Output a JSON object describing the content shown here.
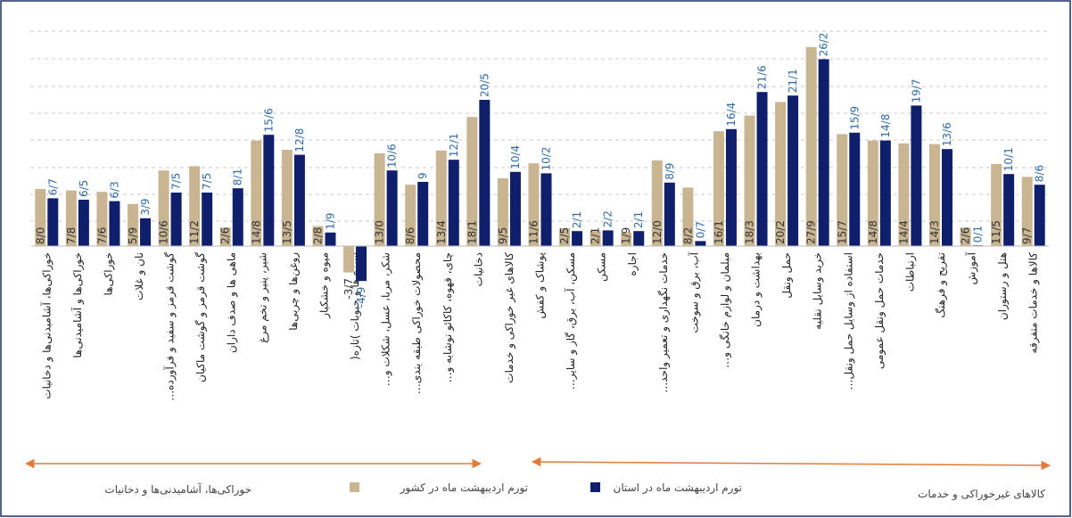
{
  "chart_data": {
    "type": "bar",
    "categories": [
      "خوراکی‌ها، آشامیدنی‌ها و دخانیات",
      "خوراکی‌ها و آشامیدنی‌ها",
      "خوراکی‌ها",
      "نان و غلات",
      "گوشت قرمز و سفید و فرآورده…",
      "گوشت قرمز و گوشت ماکیان",
      "ماهی ها و صدف داران",
      "شیر، پنیر و تخم مرغ",
      "روغن‌ها و چربی‌ها",
      "میوه و خشکبار",
      "سبزی‌ها و حبوبات )تازه(",
      "شکر، مربا، عسل، شکلات و…",
      "محصولات خوراکی طبقه بندی…",
      "چای، قهوه، کاکائو نوشابه و…",
      "دخانیات",
      "کالاهای غیر خوراکی و خدمات",
      "پوشاک و کفش",
      "مسکن، آب، برق، گاز و سایر…",
      "مسکن",
      "اجاره",
      "خدمات نگهداری و تعمیر واحد…",
      "آب، برق و سوخت",
      "مبلمان و لوازم خانگی و…",
      "بهداشت و درمان",
      "حمل ونقل",
      "خرید وسایل نقلیه",
      "استفاده از وسایل حمل ونقل…",
      "خدمات حمل ونقل عمومی",
      "ارتباطات",
      "تفریح و فرهنگ",
      "آموزش",
      "هتل و رستوران",
      "کالاها و خدمات متفرقه"
    ],
    "series": [
      {
        "name": "تورم اردیبهشت ماه در کشور",
        "color": "#c9b591",
        "values": [
          8.0,
          7.8,
          7.6,
          5.9,
          10.6,
          11.2,
          2.6,
          14.8,
          13.5,
          2.8,
          -3.7,
          13.0,
          8.6,
          13.4,
          18.1,
          9.5,
          11.6,
          2.5,
          2.1,
          1.9,
          12.0,
          8.2,
          16.1,
          18.3,
          20.2,
          27.9,
          15.7,
          14.8,
          14.4,
          14.3,
          2.6,
          11.5,
          9.7
        ],
        "value_labels": [
          "8/0",
          "7/8",
          "7/6",
          "5/9",
          "10/6",
          "11/2",
          "2/6",
          "14/8",
          "13/5",
          "2/8",
          "-3/7",
          "13/0",
          "8/6",
          "13/4",
          "18/1",
          "9/5",
          "11/6",
          "2/5",
          "2/1",
          "1/9",
          "12/0",
          "8/2",
          "16/1",
          "18/3",
          "20/2",
          "27/9",
          "15/7",
          "14/8",
          "14/4",
          "14/3",
          "2/6",
          "11/5",
          "9/7"
        ]
      },
      {
        "name": "تورم اردیبهشت ماه در استان",
        "color": "#0f1f6b",
        "values": [
          6.7,
          6.5,
          6.3,
          3.9,
          7.5,
          7.5,
          8.1,
          15.6,
          12.8,
          1.9,
          -4.9,
          10.6,
          9,
          12.1,
          20.5,
          10.4,
          10.2,
          2.1,
          2.2,
          2.1,
          8.9,
          0.7,
          16.4,
          21.6,
          21.1,
          26.2,
          15.9,
          14.8,
          19.7,
          13.6,
          0.1,
          10.1,
          8.6
        ],
        "value_labels": [
          "6/7",
          "6/5",
          "6/3",
          "3/9",
          "7/5",
          "7/5",
          "8/1",
          "15/6",
          "12/8",
          "1/9",
          "-4/9",
          "10/6",
          "9",
          "12/1",
          "20/5",
          "10/4",
          "10/2",
          "2/1",
          "2/2",
          "2/1",
          "8/9",
          "0/7",
          "16/4",
          "21/6",
          "21/1",
          "26/2",
          "15/9",
          "14/8",
          "19/7",
          "13/6",
          "0/1",
          "10/1",
          "8/6"
        ]
      }
    ],
    "ylim": [
      -6,
      32
    ],
    "annotations": [
      "خوراکی‌ها، آشامیدنی‌ها و دخانیات",
      "کالاهای غیرخوراکی و خدمات"
    ]
  }
}
